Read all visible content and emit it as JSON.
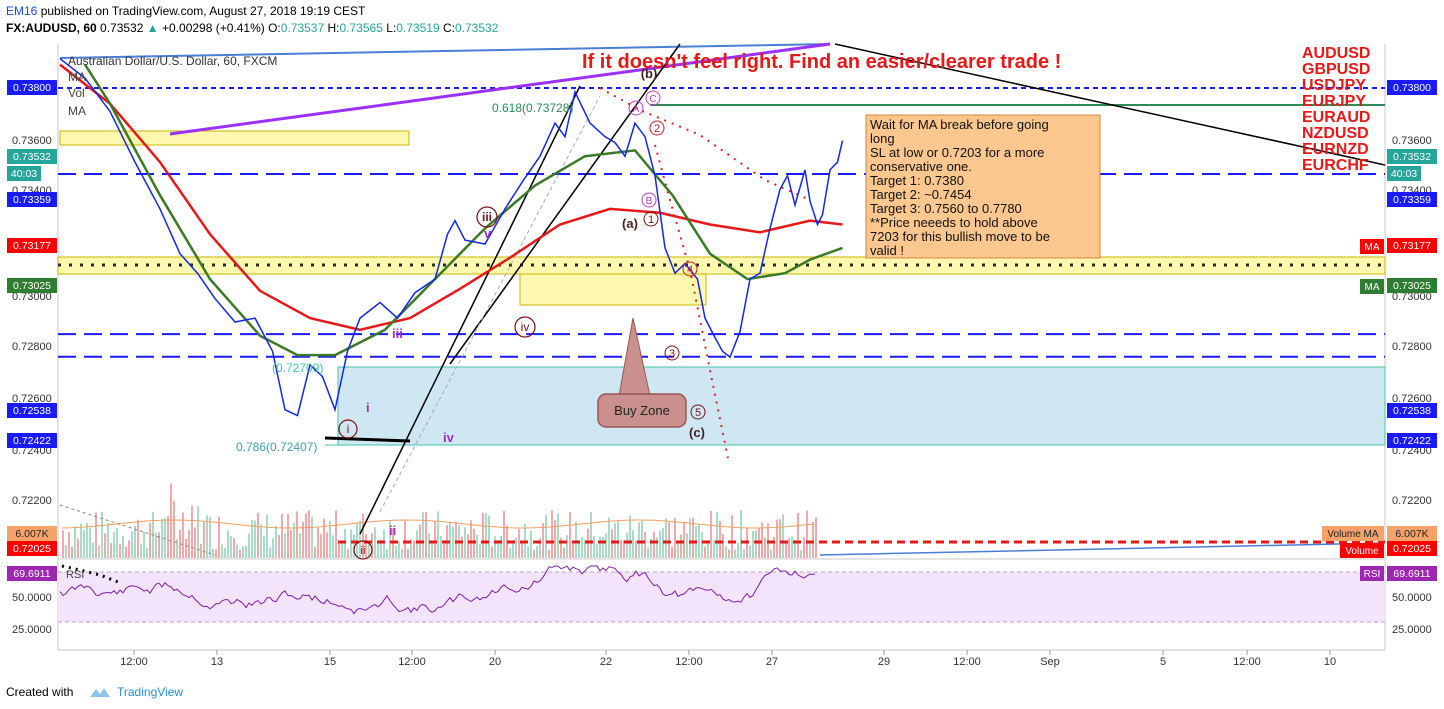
{
  "header": {
    "author": "EM16",
    "published": "published on TradingView.com, August 27, 2018 19:19 CEST",
    "symbol": "FX:AUDUSD, 60",
    "last": "0.73532",
    "change": "+0.00298 (+0.41%)",
    "o_label": "O:",
    "o_val": "0.73537",
    "h_label": "H:",
    "h_val": "0.73565",
    "l_label": "L:",
    "l_val": "0.73519",
    "c_label": "C:",
    "c_val": "0.73532"
  },
  "legend": {
    "title": "Australian Dollar/U.S. Dollar, 60, FXCM",
    "items": [
      "MA",
      "Vol",
      "MA"
    ]
  },
  "headline": "If it doesn't feel right. Find an easier/clearer trade !",
  "pairs": [
    "AUDUSD",
    "GBPUSD",
    "USDJPY",
    "EURJPY",
    "EURAUD",
    "NZDUSD",
    "EURNZD",
    "EURCHF"
  ],
  "note": {
    "lines": [
      "Wait for MA break before going",
      "long",
      "SL at low or 0.7203 for a more",
      "conservative one.",
      "Target 1: 0.7380",
      "Target 2: ~0.7454",
      "Target 3: 0.7560 to 0.7780",
      "**Price neeeds to hold above",
      "7203 for this bullish move to be",
      "valid !"
    ]
  },
  "buy_zone": "Buy Zone",
  "fib_labels": {
    "f618": "0.618(0.73728)",
    "f786": "0.786(0.72407)",
    "f2": "(0.72709)"
  },
  "wave_labels": {
    "i_c": "i",
    "ii_c": "ii",
    "iii_c": "iii",
    "iv_c": "iv",
    "v": "v",
    "iii": "iii",
    "i": "i",
    "ii": "ii",
    "iv": "iv",
    "a": "(a)",
    "b": "(b)",
    "c": "(c)",
    "n1": "1",
    "n2": "2",
    "n3": "3",
    "n4": "4",
    "n5": "5",
    "A": "A",
    "B": "B",
    "C": "C"
  },
  "price_labels": [
    {
      "text": "0.73800",
      "bg": "#1a1aff"
    },
    {
      "text": "0.73532",
      "bg": "#26a69a"
    },
    {
      "text": "40:03",
      "bg": "#26a69a"
    },
    {
      "text": "0.73359",
      "bg": "#1a1aff"
    },
    {
      "text": "0.73177",
      "bg": "#ff0000"
    },
    {
      "text": "0.73025",
      "bg": "#2e7d32"
    },
    {
      "text": "0.72538",
      "bg": "#1a1aff"
    },
    {
      "text": "0.72422",
      "bg": "#1a1aff"
    },
    {
      "text": "6.007K",
      "bg": "#f6a36b"
    },
    {
      "text": "0.72025",
      "bg": "#ff0000"
    },
    {
      "text": "69.6911",
      "bg": "#9c27b0"
    }
  ],
  "right_tags": {
    "ma1": "MA",
    "ma2": "MA",
    "vol_ma": "Volume MA",
    "vol": "Volume",
    "rsi": "RSI"
  },
  "rsi_label": "RSI",
  "chart_data": {
    "type": "line",
    "price_axis_ticks": [
      "0.73600",
      "0.73400",
      "0.73000",
      "0.72800",
      "0.72600",
      "0.72400",
      "0.72200"
    ],
    "rsi_axis_ticks": [
      "50.0000",
      "25.0000"
    ],
    "x_tick_labels": [
      "12:00",
      "13",
      "15",
      "12:00",
      "20",
      "22",
      "12:00",
      "27",
      "29",
      "12:00",
      "Sep",
      "5",
      "12:00",
      "10"
    ],
    "horizontal_levels": [
      0.738,
      0.73359,
      0.72538,
      0.72422,
      0.72025
    ],
    "rsi_last": 69.6911,
    "price": [
      [
        0,
        0.7395
      ],
      [
        10,
        0.7385
      ],
      [
        20,
        0.7368
      ],
      [
        30,
        0.7342
      ],
      [
        35,
        0.733
      ],
      [
        40,
        0.7318
      ],
      [
        48,
        0.7295
      ],
      [
        55,
        0.7285
      ],
      [
        62,
        0.7272
      ],
      [
        70,
        0.726
      ],
      [
        78,
        0.7262
      ],
      [
        85,
        0.7245
      ],
      [
        90,
        0.7215
      ],
      [
        95,
        0.7212
      ],
      [
        100,
        0.7238
      ],
      [
        105,
        0.7232
      ],
      [
        110,
        0.7215
      ],
      [
        115,
        0.7245
      ],
      [
        120,
        0.7262
      ],
      [
        128,
        0.727
      ],
      [
        135,
        0.7262
      ],
      [
        142,
        0.7275
      ],
      [
        150,
        0.7282
      ],
      [
        155,
        0.7305
      ],
      [
        158,
        0.7312
      ],
      [
        162,
        0.7302
      ],
      [
        170,
        0.73
      ],
      [
        178,
        0.7318
      ],
      [
        185,
        0.7332
      ],
      [
        192,
        0.7345
      ],
      [
        198,
        0.7362
      ],
      [
        202,
        0.7355
      ],
      [
        206,
        0.7378
      ],
      [
        212,
        0.7362
      ],
      [
        218,
        0.7355
      ],
      [
        222,
        0.7352
      ],
      [
        226,
        0.7345
      ],
      [
        230,
        0.7362
      ],
      [
        234,
        0.7355
      ],
      [
        238,
        0.7335
      ],
      [
        242,
        0.7298
      ],
      [
        246,
        0.7285
      ],
      [
        250,
        0.729
      ],
      [
        255,
        0.7282
      ],
      [
        258,
        0.7262
      ],
      [
        262,
        0.7252
      ],
      [
        265,
        0.7245
      ],
      [
        268,
        0.7242
      ],
      [
        272,
        0.7255
      ],
      [
        276,
        0.7282
      ],
      [
        280,
        0.7285
      ],
      [
        284,
        0.7308
      ],
      [
        288,
        0.7328
      ],
      [
        291,
        0.7335
      ],
      [
        294,
        0.732
      ],
      [
        298,
        0.7338
      ],
      [
        300,
        0.7322
      ],
      [
        303,
        0.731
      ],
      [
        305,
        0.7315
      ],
      [
        308,
        0.7338
      ],
      [
        311,
        0.7342
      ],
      [
        313,
        0.7353
      ]
    ],
    "ma_red": [
      [
        0,
        0.7392
      ],
      [
        20,
        0.7372
      ],
      [
        40,
        0.7342
      ],
      [
        60,
        0.7305
      ],
      [
        80,
        0.7276
      ],
      [
        100,
        0.7262
      ],
      [
        120,
        0.7256
      ],
      [
        140,
        0.7262
      ],
      [
        160,
        0.7277
      ],
      [
        180,
        0.7293
      ],
      [
        200,
        0.731
      ],
      [
        220,
        0.7318
      ],
      [
        240,
        0.7316
      ],
      [
        260,
        0.731
      ],
      [
        280,
        0.7306
      ],
      [
        300,
        0.7312
      ],
      [
        313,
        0.731
      ]
    ],
    "ma_green": [
      [
        10,
        0.7392
      ],
      [
        20,
        0.7372
      ],
      [
        40,
        0.7325
      ],
      [
        60,
        0.7282
      ],
      [
        80,
        0.7253
      ],
      [
        95,
        0.7243
      ],
      [
        110,
        0.7243
      ],
      [
        130,
        0.7256
      ],
      [
        150,
        0.7282
      ],
      [
        170,
        0.7308
      ],
      [
        190,
        0.733
      ],
      [
        210,
        0.7345
      ],
      [
        230,
        0.7348
      ],
      [
        245,
        0.7325
      ],
      [
        260,
        0.7295
      ],
      [
        275,
        0.7282
      ],
      [
        290,
        0.7285
      ],
      [
        300,
        0.7292
      ],
      [
        313,
        0.7298
      ]
    ]
  }
}
